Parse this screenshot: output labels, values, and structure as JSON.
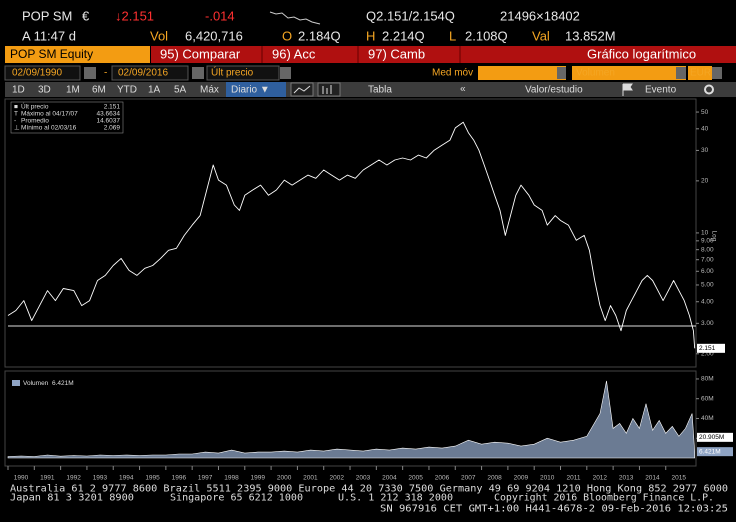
{
  "header": {
    "ticker": "POP SM",
    "currency": "€",
    "last": "↓2.151",
    "change": "-.014",
    "quote": "Q2.151/2.154Q",
    "size": "21496×18402",
    "time": "A 11:47 d",
    "vol_label": "Vol",
    "vol": "6,420,716",
    "open_label": "O",
    "open": "2.184Q",
    "high_label": "H",
    "high": "2.214Q",
    "low_label": "L",
    "low": "2.108Q",
    "val_label": "Val",
    "val": "13.852M"
  },
  "tabs": {
    "security": "POP SM Equity",
    "items": [
      "95) Comparar",
      "96) Acc",
      "97) Camb"
    ],
    "mode": "Gráfico logarítmico"
  },
  "controls": {
    "start_date": "02/09/1990",
    "dash": "-",
    "end_date": "02/09/2016",
    "field": "Últ precio",
    "moving_average": "Med móv",
    "lower_field": "Volumen",
    "currency": "EUR"
  },
  "toolbar": {
    "periods": [
      "1D",
      "3D",
      "1M",
      "6M",
      "YTD",
      "1A",
      "5A",
      "Máx"
    ],
    "frequency": "Diario ▼",
    "table": "Tabla",
    "back": "«",
    "study": "Valor/estudio",
    "event": "Evento"
  },
  "chart_data": [
    {
      "type": "line",
      "log_scale": true,
      "y_axis_label": "Log",
      "stats": [
        {
          "label": "Últ precio",
          "value": 2.151
        },
        {
          "label": "Máximo al 04/17/07",
          "value": 43.6634
        },
        {
          "label": "Promedio",
          "value": 14.6037
        },
        {
          "label": "Mínimo al 02/03/16",
          "value": 2.069
        }
      ],
      "x": [
        1990.0,
        1990.3,
        1990.6,
        1990.9,
        1991.2,
        1991.5,
        1991.8,
        1992.1,
        1992.5,
        1992.8,
        1993.1,
        1993.4,
        1993.7,
        1994.0,
        1994.3,
        1994.6,
        1994.9,
        1995.2,
        1995.5,
        1995.8,
        1996.1,
        1996.4,
        1996.7,
        1997.0,
        1997.3,
        1997.6,
        1997.8,
        1998.0,
        1998.3,
        1998.6,
        1998.8,
        1999.0,
        1999.3,
        1999.6,
        1999.9,
        2000.2,
        2000.5,
        2000.8,
        2001.1,
        2001.4,
        2001.7,
        2002.0,
        2002.3,
        2002.6,
        2002.9,
        2003.2,
        2003.5,
        2003.8,
        2004.1,
        2004.4,
        2004.7,
        2005.0,
        2005.3,
        2005.6,
        2005.9,
        2006.2,
        2006.5,
        2006.8,
        2007.0,
        2007.3,
        2007.5,
        2007.7,
        2007.9,
        2008.1,
        2008.3,
        2008.5,
        2008.7,
        2008.9,
        2009.1,
        2009.3,
        2009.5,
        2009.8,
        2010.0,
        2010.3,
        2010.5,
        2010.8,
        2011.0,
        2011.3,
        2011.6,
        2011.9,
        2012.1,
        2012.3,
        2012.5,
        2012.7,
        2012.9,
        2013.1,
        2013.3,
        2013.5,
        2013.7,
        2013.9,
        2014.1,
        2014.3,
        2014.5,
        2014.7,
        2014.9,
        2015.1,
        2015.3,
        2015.5,
        2015.7,
        2015.9,
        2016.05,
        2016.1
      ],
      "series": [
        {
          "color": "#ffffff",
          "values": [
            3.33,
            3.56,
            4.06,
            3.11,
            3.8,
            4.64,
            4.06,
            4.77,
            4.64,
            3.8,
            4.06,
            5.31,
            5.68,
            6.48,
            7.12,
            6.07,
            5.68,
            6.24,
            6.48,
            7.12,
            7.93,
            8.15,
            9.68,
            11.1,
            12.6,
            18.9,
            24.7,
            20.2,
            18.9,
            14.5,
            13.5,
            16.5,
            17.7,
            18.9,
            16.5,
            17.7,
            20.2,
            18.9,
            20.2,
            21.6,
            20.7,
            23.1,
            21.6,
            20.2,
            21.6,
            20.7,
            23.1,
            24.7,
            26.4,
            24.7,
            26.4,
            27.1,
            26.4,
            28.2,
            27.1,
            30.1,
            32.2,
            34.4,
            40.5,
            43.7,
            38.0,
            34.4,
            30.1,
            24.7,
            20.2,
            16.5,
            13.5,
            9.68,
            12.6,
            16.5,
            18.9,
            16.5,
            14.5,
            13.5,
            11.1,
            12.6,
            11.8,
            11.1,
            9.06,
            9.68,
            7.93,
            5.31,
            3.8,
            3.11,
            3.8,
            3.33,
            2.72,
            3.56,
            4.06,
            4.64,
            5.31,
            5.68,
            5.31,
            4.64,
            4.06,
            4.64,
            5.31,
            4.64,
            4.06,
            3.33,
            2.72,
            2.151
          ]
        }
      ],
      "xlim": [
        1990,
        2016.15
      ],
      "ylim": [
        1.7,
        58.7
      ],
      "xticks": [
        1990,
        1991,
        1992,
        1993,
        1994,
        1995,
        1996,
        1997,
        1998,
        1999,
        2000,
        2001,
        2002,
        2003,
        2004,
        2005,
        2006,
        2007,
        2008,
        2009,
        2010,
        2011,
        2012,
        2013,
        2014,
        2015
      ],
      "yticks": [
        {
          "value": 2,
          "label": "2.00"
        },
        {
          "value": 3,
          "label": "3.00"
        },
        {
          "value": 4,
          "label": "4.00"
        },
        {
          "value": 5,
          "label": "5.00"
        },
        {
          "value": 6,
          "label": "6.00"
        },
        {
          "value": 7,
          "label": "7.00"
        },
        {
          "value": 8,
          "label": "8.00"
        },
        {
          "value": 9,
          "label": "9.00"
        },
        10,
        20,
        30,
        40,
        50
      ]
    },
    {
      "type": "area",
      "x": [
        1990,
        1990.5,
        1991,
        1991.5,
        1992,
        1992.5,
        1993,
        1993.5,
        1994,
        1994.5,
        1995,
        1995.5,
        1996,
        1996.5,
        1997,
        1997.5,
        1998,
        1998.5,
        1999,
        1999.5,
        2000,
        2000.5,
        2001,
        2001.5,
        2002,
        2002.5,
        2003,
        2003.5,
        2004,
        2004.5,
        2005,
        2005.5,
        2006,
        2006.5,
        2007,
        2007.5,
        2008,
        2008.5,
        2009,
        2009.5,
        2010,
        2010.5,
        2011,
        2011.5,
        2012,
        2012.5,
        2012.75,
        2013,
        2013.25,
        2013.5,
        2013.75,
        2014,
        2014.25,
        2014.5,
        2014.75,
        2015,
        2015.25,
        2015.5,
        2015.75,
        2016,
        2016.1
      ],
      "series": [
        {
          "name": "Volumen",
          "color": "#8fa4c4",
          "values": [
            1500000,
            2000000,
            1500000,
            3000000,
            1800000,
            2500000,
            2000000,
            3000000,
            2500000,
            3000000,
            2500000,
            3000000,
            3000000,
            4000000,
            4000000,
            6000000,
            5000000,
            8000000,
            5000000,
            6000000,
            6000000,
            7000000,
            6000000,
            8000000,
            7000000,
            9000000,
            8000000,
            7000000,
            9000000,
            8000000,
            10000000,
            9000000,
            11000000,
            10000000,
            12000000,
            18000000,
            14000000,
            16000000,
            15000000,
            12000000,
            14000000,
            20000000,
            16000000,
            18000000,
            22000000,
            45000000,
            78000000,
            30000000,
            35000000,
            25000000,
            40000000,
            30000000,
            55000000,
            28000000,
            38000000,
            25000000,
            32000000,
            22000000,
            30000000,
            45000000,
            6421000
          ],
          "last": {
            "value": 6421000,
            "label": "6.421M"
          }
        }
      ],
      "moving_average": {
        "value": 20905000,
        "label": "20.905M"
      },
      "ylim": [
        0,
        84000000
      ],
      "yticks": [
        {
          "value": 20000000,
          "label": "20M"
        },
        {
          "value": 40000000,
          "label": "40M"
        },
        {
          "value": 60000000,
          "label": "60M"
        },
        {
          "value": 80000000,
          "label": "80M"
        }
      ]
    }
  ],
  "footer": {
    "line1": "Australia 61 2 9777 8600 Brazil 5511 2395 9000 Europe 44 20 7330 7500 Germany 49 69 9204 1210 Hong Kong 852 2977 6000",
    "line2": [
      "Japan 81 3 3201 8900",
      "Singapore 65 6212 1000",
      "U.S. 1 212 318 2000",
      "Copyright 2016 Bloomberg Finance L.P."
    ],
    "line3": "SN 967916 CET  GMT+1:00 H441-4678-2 09-Feb-2016 12:03:25"
  }
}
